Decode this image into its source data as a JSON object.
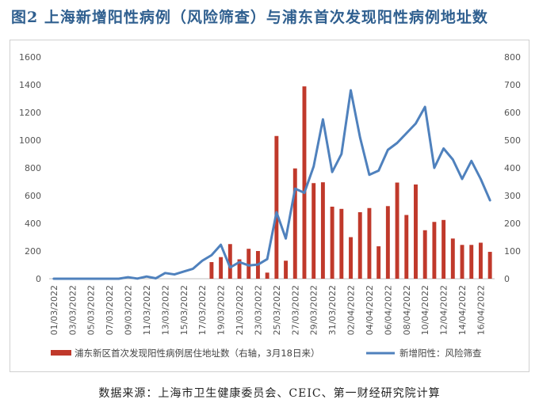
{
  "title": "图2 上海新增阳性病例（风险筛查）与浦东首次发现阳性病例地址数",
  "source": "数据来源：上海市卫生健康委员会、CEIC、第一财经研究院计算",
  "chart_data": {
    "type": "bar+line",
    "x": [
      "01/03/2022",
      "02/03/2022",
      "03/03/2022",
      "04/03/2022",
      "05/03/2022",
      "06/03/2022",
      "07/03/2022",
      "08/03/2022",
      "09/03/2022",
      "10/03/2022",
      "11/03/2022",
      "12/03/2022",
      "13/03/2022",
      "14/03/2022",
      "15/03/2022",
      "16/03/2022",
      "17/03/2022",
      "18/03/2022",
      "19/03/2022",
      "20/03/2022",
      "21/03/2022",
      "22/03/2022",
      "23/03/2022",
      "24/03/2022",
      "25/03/2022",
      "26/03/2022",
      "27/03/2022",
      "28/03/2022",
      "29/03/2022",
      "30/03/2022",
      "31/03/2022",
      "01/04/2022",
      "02/04/2022",
      "03/04/2022",
      "04/04/2022",
      "05/04/2022",
      "06/04/2022",
      "07/04/2022",
      "08/04/2022",
      "09/04/2022",
      "10/04/2022",
      "11/04/2022",
      "12/04/2022",
      "13/04/2022",
      "14/04/2022",
      "15/04/2022",
      "16/04/2022",
      "17/04/2022"
    ],
    "xticks": [
      "01/03/2022",
      "03/03/2022",
      "05/03/2022",
      "07/03/2022",
      "09/03/2022",
      "11/03/2022",
      "13/03/2022",
      "15/03/2022",
      "17/03/2022",
      "19/03/2022",
      "21/03/2022",
      "23/03/2022",
      "25/03/2022",
      "27/03/2022",
      "29/03/2022",
      "31/03/2022",
      "02/04/2022",
      "04/04/2022",
      "06/04/2022",
      "08/04/2022",
      "10/04/2022",
      "12/04/2022",
      "14/04/2022",
      "16/04/2022"
    ],
    "ylim_left": [
      0,
      1600
    ],
    "yticks_left": [
      0,
      200,
      400,
      600,
      800,
      1000,
      1200,
      1400,
      1600
    ],
    "ylim_right": [
      0,
      800
    ],
    "yticks_right": [
      0,
      100,
      200,
      300,
      400,
      500,
      600,
      700,
      800
    ],
    "grid": false,
    "legend_position": "bottom",
    "series": [
      {
        "name": "浦东新区首次发现阳性病例居住地址数（右轴，3月18日来）",
        "type": "bar",
        "axis": "right",
        "color": "#c0392b",
        "values": [
          null,
          null,
          null,
          null,
          null,
          null,
          null,
          null,
          null,
          null,
          null,
          null,
          null,
          null,
          null,
          null,
          null,
          60,
          78,
          125,
          70,
          108,
          100,
          22,
          515,
          65,
          398,
          694,
          345,
          348,
          260,
          252,
          150,
          240,
          255,
          117,
          262,
          347,
          230,
          340,
          175,
          205,
          212,
          145,
          122,
          122,
          130,
          97
        ]
      },
      {
        "name": "新增阳性：风险筛查",
        "type": "line",
        "axis": "left",
        "color": "#4f81bd",
        "values": [
          0,
          0,
          0,
          0,
          0,
          0,
          0,
          0,
          11,
          1,
          16,
          3,
          41,
          31,
          52,
          72,
          130,
          170,
          245,
          81,
          120,
          96,
          102,
          142,
          480,
          290,
          650,
          620,
          810,
          1150,
          770,
          900,
          1360,
          1020,
          750,
          780,
          930,
          980,
          1050,
          1120,
          1240,
          800,
          940,
          860,
          720,
          850,
          720,
          566
        ]
      }
    ]
  }
}
